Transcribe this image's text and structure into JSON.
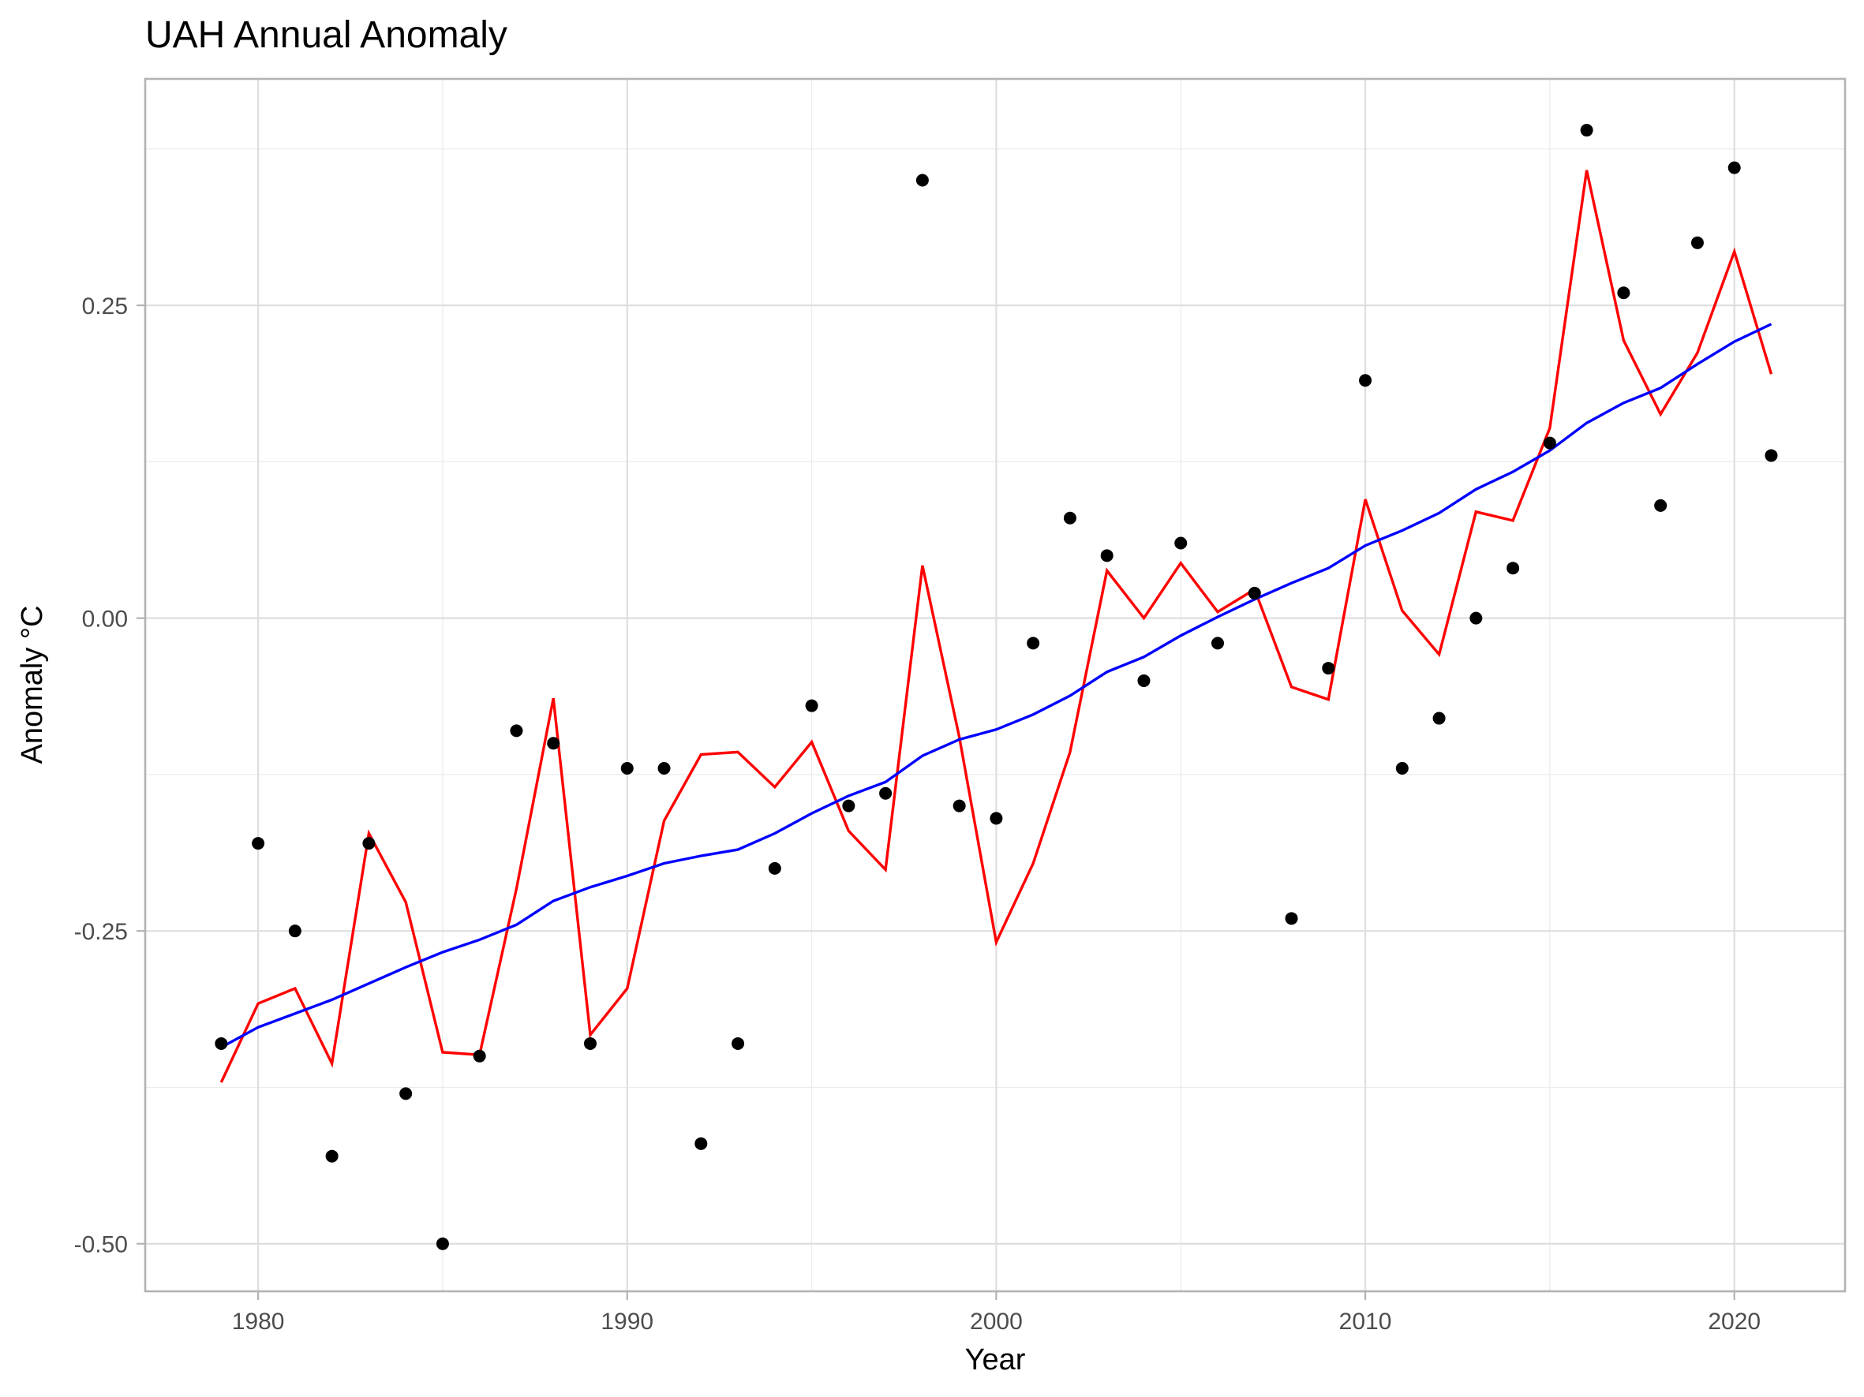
{
  "chart_data": {
    "type": "scatter",
    "title": "UAH Annual Anomaly",
    "xlabel": "Year",
    "ylabel": "Anomaly °C",
    "xlim": [
      1976.94,
      2023.0
    ],
    "ylim": [
      -0.538,
      0.431
    ],
    "x_ticks": [
      1980,
      1990,
      2000,
      2010,
      2020
    ],
    "x_tick_labels": [
      "1980",
      "1990",
      "2000",
      "2010",
      "2020"
    ],
    "x_minor_ticks": [
      1985,
      1995,
      2005,
      2015
    ],
    "y_ticks": [
      -0.5,
      -0.25,
      0.0,
      0.25
    ],
    "y_tick_labels": [
      "-0.50",
      "-0.25",
      "0.00",
      "0.25"
    ],
    "y_minor_ticks": [
      -0.375,
      -0.125,
      0.125,
      0.375
    ],
    "grid": true,
    "legend": "none",
    "x": [
      1979,
      1980,
      1981,
      1982,
      1983,
      1984,
      1985,
      1986,
      1987,
      1988,
      1989,
      1990,
      1991,
      1992,
      1993,
      1994,
      1995,
      1996,
      1997,
      1998,
      1999,
      2000,
      2001,
      2002,
      2003,
      2004,
      2005,
      2006,
      2007,
      2008,
      2009,
      2010,
      2011,
      2012,
      2013,
      2014,
      2015,
      2016,
      2017,
      2018,
      2019,
      2020,
      2021
    ],
    "series": [
      {
        "name": "Annual anomaly",
        "kind": "points",
        "color": "#000000",
        "values": [
          -0.34,
          -0.18,
          -0.25,
          -0.43,
          -0.18,
          -0.38,
          -0.5,
          -0.35,
          -0.09,
          -0.1,
          -0.34,
          -0.12,
          -0.12,
          -0.42,
          -0.34,
          -0.2,
          -0.07,
          -0.15,
          -0.14,
          0.35,
          -0.15,
          -0.16,
          -0.02,
          0.08,
          0.05,
          -0.05,
          0.06,
          -0.02,
          0.02,
          -0.24,
          -0.04,
          0.19,
          -0.12,
          -0.08,
          0.0,
          0.04,
          0.14,
          0.39,
          0.26,
          0.09,
          0.3,
          0.36,
          0.13
        ]
      },
      {
        "name": "Red line",
        "kind": "line",
        "color": "#FF0000",
        "values": [
          -0.371,
          -0.308,
          -0.296,
          -0.356,
          -0.172,
          -0.227,
          -0.347,
          -0.349,
          -0.216,
          -0.064,
          -0.333,
          -0.296,
          -0.162,
          -0.109,
          -0.107,
          -0.135,
          -0.099,
          -0.17,
          -0.201,
          0.042,
          -0.095,
          -0.259,
          -0.196,
          -0.107,
          0.038,
          0.0,
          0.044,
          0.005,
          0.023,
          -0.055,
          -0.065,
          0.095,
          0.006,
          -0.029,
          0.085,
          0.078,
          0.152,
          0.358,
          0.222,
          0.163,
          0.212,
          0.293,
          0.195
        ]
      },
      {
        "name": "Blue line",
        "kind": "line",
        "color": "#0000FF",
        "values": [
          -0.343,
          -0.327,
          -0.316,
          -0.305,
          -0.292,
          -0.279,
          -0.267,
          -0.257,
          -0.245,
          -0.226,
          -0.215,
          -0.206,
          -0.196,
          -0.19,
          -0.185,
          -0.172,
          -0.156,
          -0.142,
          -0.131,
          -0.11,
          -0.097,
          -0.089,
          -0.077,
          -0.062,
          -0.043,
          -0.031,
          -0.014,
          0.001,
          0.015,
          0.028,
          0.04,
          0.058,
          0.07,
          0.084,
          0.103,
          0.117,
          0.134,
          0.156,
          0.172,
          0.184,
          0.203,
          0.221,
          0.235
        ]
      }
    ]
  }
}
